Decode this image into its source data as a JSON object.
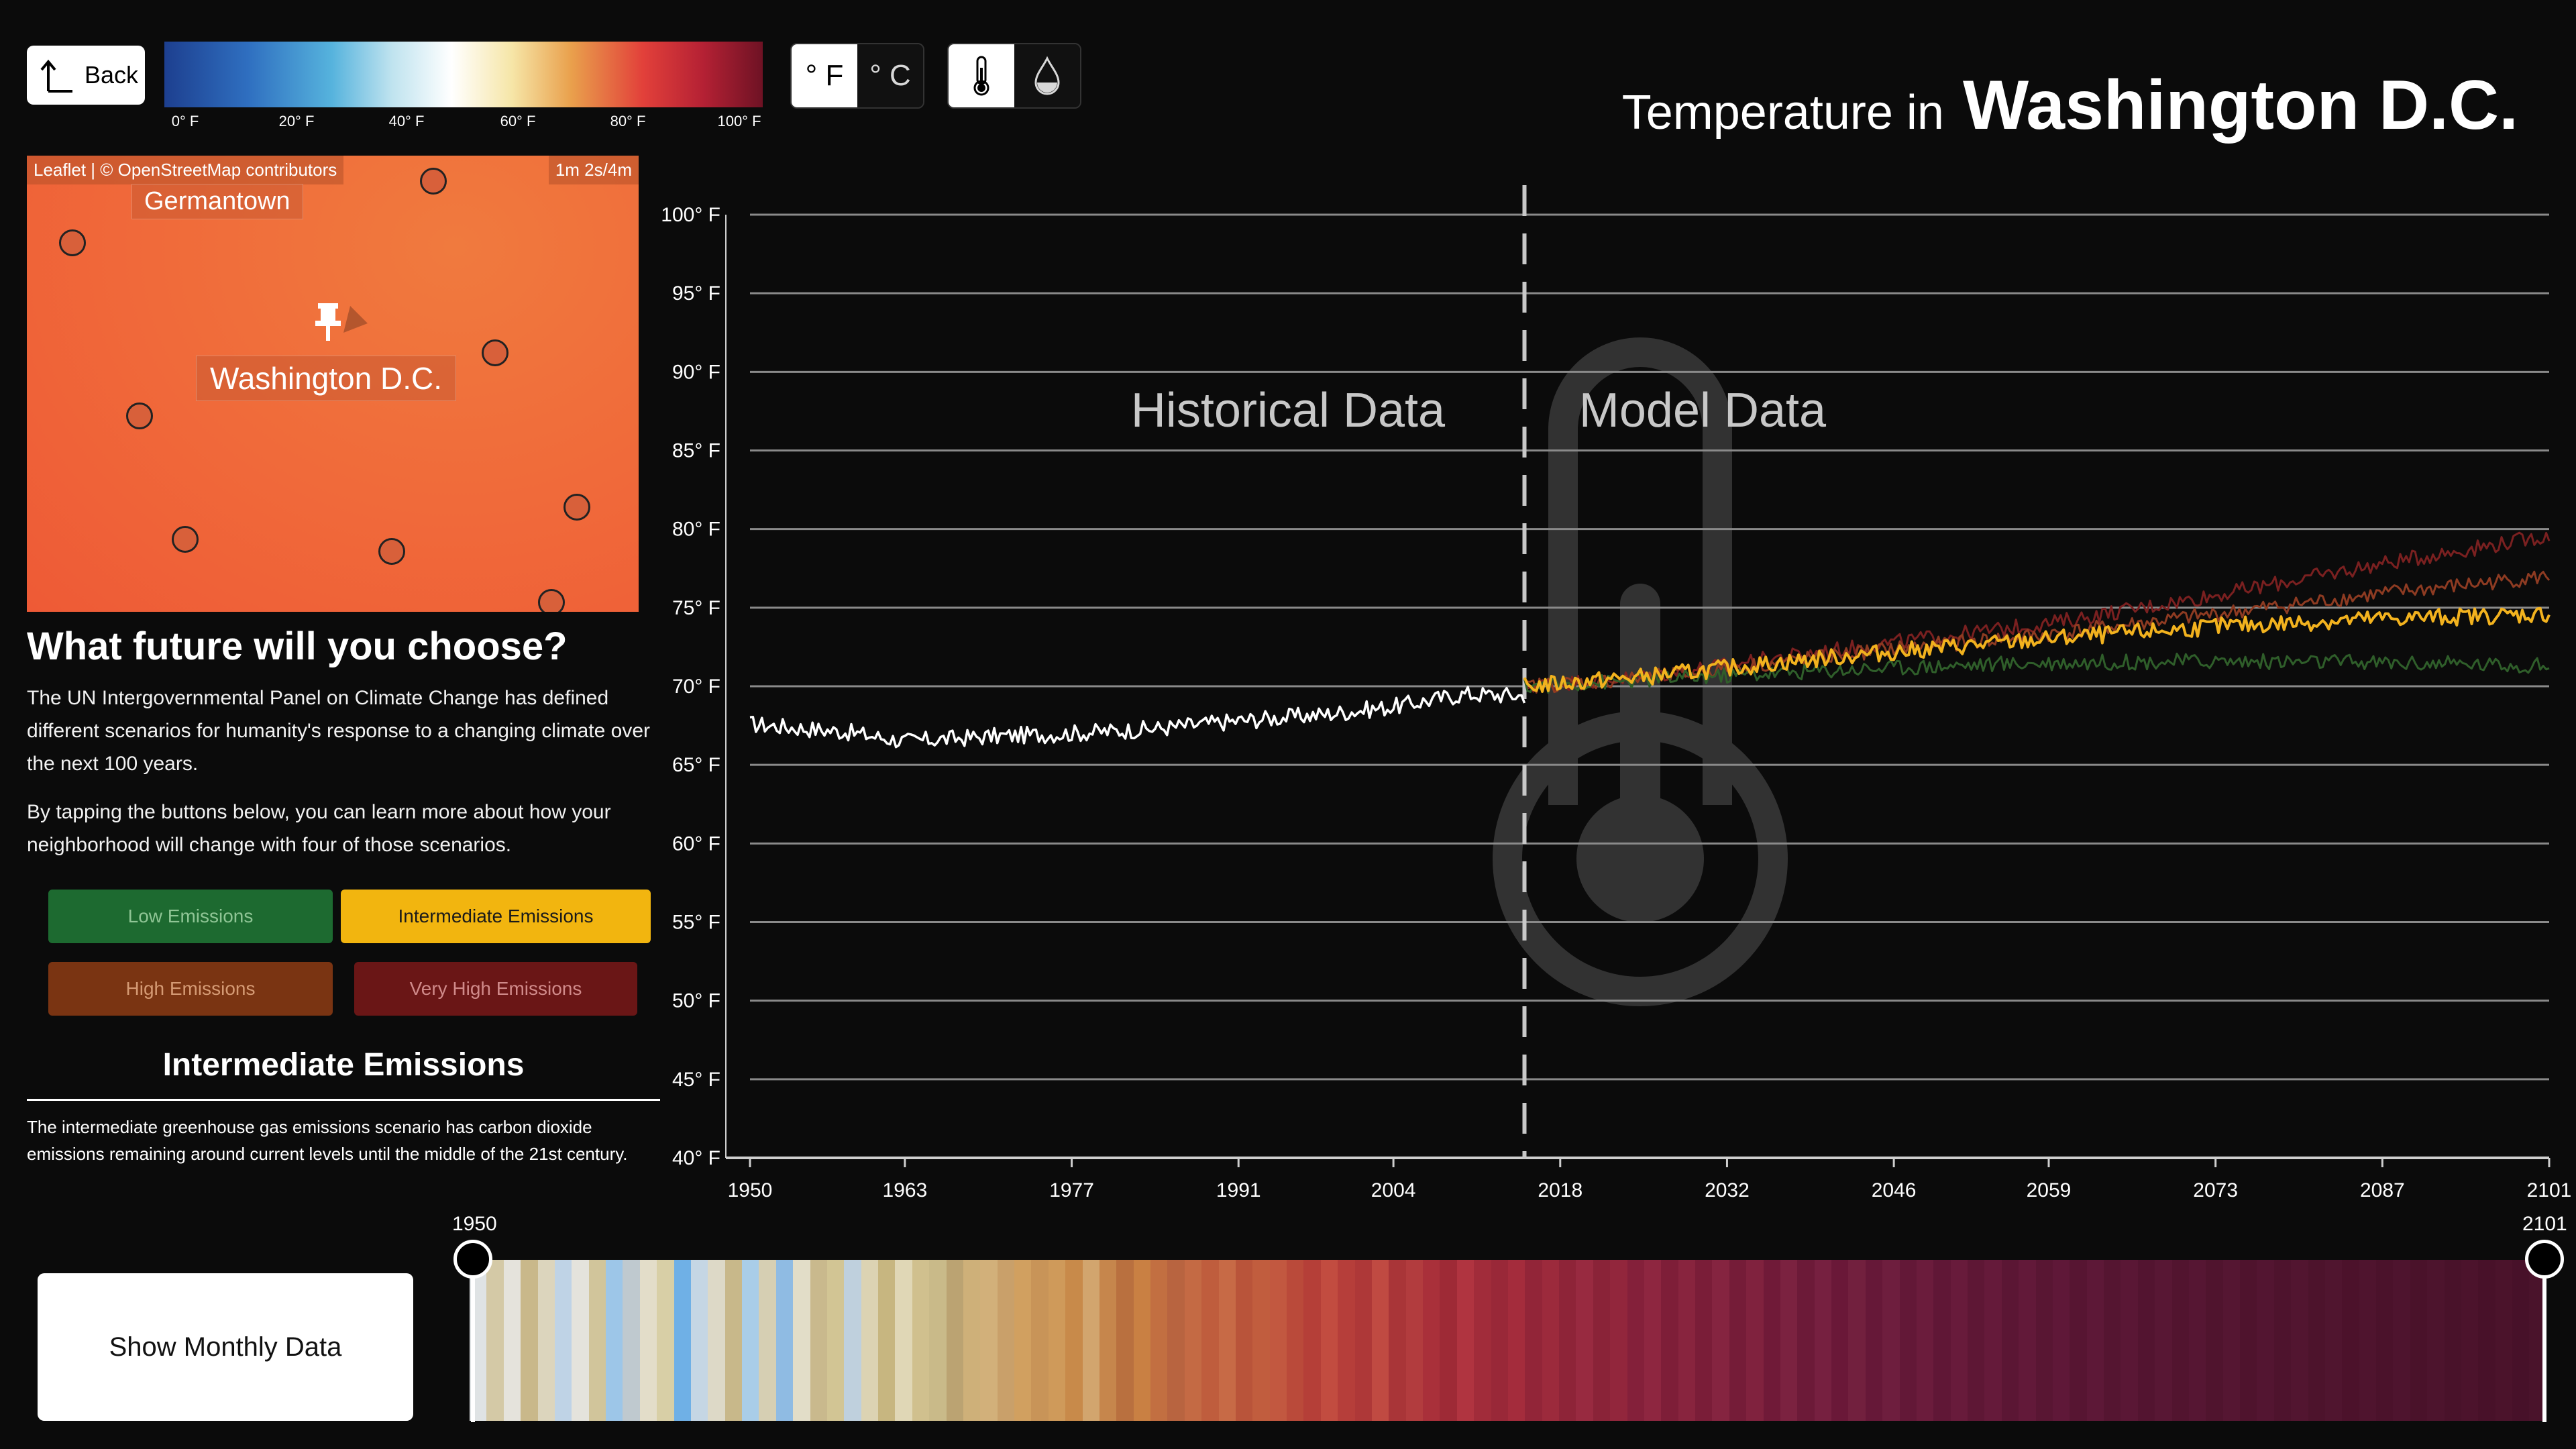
{
  "toolbar": {
    "back_label": "Back",
    "colorbar_ticks": [
      "0° F",
      "20° F",
      "40° F",
      "60° F",
      "80° F",
      "100° F"
    ],
    "unit_f": "° F",
    "unit_c": "° C",
    "active_unit": "F",
    "metric_temperature_icon": "thermometer-icon",
    "metric_precip_icon": "water-drop-icon"
  },
  "title": {
    "prefix": "Temperature in",
    "city": "Washington D.C."
  },
  "map": {
    "attribution": "Leaflet | © OpenStreetMap contributors",
    "scale": "1m 2s/4m",
    "labels": {
      "germantown": "Germantown",
      "washington": "Washington D.C."
    }
  },
  "panel": {
    "question": "What future will you choose?",
    "para1": "The UN Intergovernmental Panel on Climate Change has defined different scenarios for humanity's response to a changing climate over the next 100 years.",
    "para2": "By tapping the buttons below, you can learn more about how your neighborhood will change with four of those scenarios.",
    "scenarios": {
      "low": "Low Emissions",
      "intermediate": "Intermediate Emissions",
      "high": "High Emissions",
      "very_high": "Very High Emissions"
    },
    "selected_scenario": "Intermediate Emissions",
    "selected_heading": "Intermediate Emissions",
    "selected_description": "The intermediate greenhouse gas emissions scenario has carbon dioxide emissions remaining around current levels until the middle of the 21st century."
  },
  "colors": {
    "low": "#1d6a30",
    "intermediate": "#f2b50f",
    "high": "#7a3412",
    "very_high": "#6a1616",
    "historical": "#ffffff",
    "model_intermediate": "#f2b21e",
    "model_low": "#2f5e2a",
    "model_high": "#8e3b22",
    "model_very_high": "#7a2020"
  },
  "chart_data": {
    "type": "line",
    "x_ticks": [
      "1950",
      "1963",
      "1977",
      "1991",
      "2004",
      "2018",
      "2032",
      "2046",
      "2059",
      "2073",
      "2087",
      "2101"
    ],
    "y_ticks": [
      "40° F",
      "45° F",
      "50° F",
      "55° F",
      "60° F",
      "65° F",
      "70° F",
      "75° F",
      "80° F",
      "85° F",
      "90° F",
      "95° F",
      "100° F"
    ],
    "xlim": [
      1950,
      2101
    ],
    "ylim": [
      40,
      100
    ],
    "divider_year": 2015,
    "annotations": {
      "historical": "Historical Data",
      "model": "Model Data"
    },
    "series": [
      {
        "key": "historical",
        "x": [
          1950,
          1958,
          1963,
          1970,
          1977,
          1984,
          1991,
          1998,
          2004,
          2010,
          2015
        ],
        "y": [
          67.6,
          67.1,
          66.5,
          66.8,
          67.0,
          67.3,
          67.8,
          68.2,
          68.7,
          69.5,
          69.4
        ]
      },
      {
        "key": "model_very_high",
        "x": [
          2015,
          2025,
          2035,
          2046,
          2059,
          2073,
          2087,
          2101
        ],
        "y": [
          70.0,
          70.6,
          71.7,
          72.8,
          74.0,
          75.8,
          77.8,
          79.6
        ]
      },
      {
        "key": "model_high",
        "x": [
          2015,
          2025,
          2035,
          2046,
          2059,
          2073,
          2087,
          2101
        ],
        "y": [
          70.0,
          70.5,
          71.4,
          72.4,
          73.3,
          74.6,
          75.9,
          77.0
        ]
      },
      {
        "key": "model_low",
        "x": [
          2015,
          2025,
          2035,
          2046,
          2059,
          2073,
          2087,
          2101
        ],
        "y": [
          70.0,
          70.4,
          70.8,
          71.2,
          71.5,
          71.6,
          71.5,
          71.3
        ]
      },
      {
        "key": "model_intermediate",
        "x": [
          2015,
          2025,
          2035,
          2046,
          2059,
          2073,
          2087,
          2101
        ],
        "y": [
          70.0,
          70.6,
          71.4,
          72.2,
          73.0,
          73.8,
          74.3,
          74.6
        ]
      }
    ]
  },
  "range": {
    "start_label": "1950",
    "end_label": "2101"
  },
  "monthly_button": "Show Monthly Data",
  "stripes": [
    "#dfe3e4",
    "#d4c9a6",
    "#e5e3dc",
    "#c9b88a",
    "#dcd5bd",
    "#bfd3e6",
    "#e4e3dc",
    "#d1c59b",
    "#9dc6e8",
    "#bfc9cf",
    "#e3ddc9",
    "#d8cfa6",
    "#6fb0e6",
    "#c5d6e4",
    "#ddd9c7",
    "#c8b88a",
    "#a9cde8",
    "#d6cfb3",
    "#8fbbe3",
    "#e2ddc8",
    "#c9b98d",
    "#d2c594",
    "#bfd0dd",
    "#dcd3b3",
    "#c7b680",
    "#e0d7b6",
    "#d0c08e",
    "#c9ba89",
    "#bba372",
    "#ceb079",
    "#d2b07a",
    "#c9a06a",
    "#d1a060",
    "#c89458",
    "#cf9a5a",
    "#c88a4a",
    "#d2a56e",
    "#c6864c",
    "#b9703f",
    "#c98043",
    "#c26f41",
    "#b86440",
    "#c46a44",
    "#bf5d3d",
    "#c76a46",
    "#b9543a",
    "#c15d3e",
    "#c25840",
    "#ba4a3a",
    "#b53f38",
    "#c24c40",
    "#b63e3a",
    "#ae3838",
    "#c04a42",
    "#a93538",
    "#b23c3e",
    "#a9303a",
    "#9e2a36",
    "#b03440",
    "#a12c3a",
    "#992838",
    "#a42c3c",
    "#922538",
    "#9c2a3c",
    "#8e2438",
    "#982a40",
    "#8a2338",
    "#92263c",
    "#84203a",
    "#8e2640",
    "#7e1e38",
    "#88243e",
    "#7a1d38",
    "#852440",
    "#751c38",
    "#80223e",
    "#701a38",
    "#7b2240",
    "#6c1a38",
    "#762040",
    "#6a1838",
    "#72203e",
    "#661838",
    "#6e1e3e",
    "#631837",
    "#6b1c3c",
    "#601736",
    "#681b3b",
    "#5e1735",
    "#651a3a",
    "#5b1634",
    "#621939",
    "#591633",
    "#5f1838",
    "#571532",
    "#5d1837",
    "#551531",
    "#5a1735",
    "#531430",
    "#581734",
    "#52142f",
    "#561633",
    "#50142e",
    "#551632",
    "#4f132d",
    "#531531",
    "#4e132d",
    "#521530",
    "#4d132c",
    "#50152f",
    "#4c122b",
    "#4f142e",
    "#4b122b",
    "#4e142e",
    "#4a122a",
    "#4d142d",
    "#49122a",
    "#4c132c",
    "#481129",
    "#4b132b",
    "#471129",
    "#4a132b"
  ]
}
